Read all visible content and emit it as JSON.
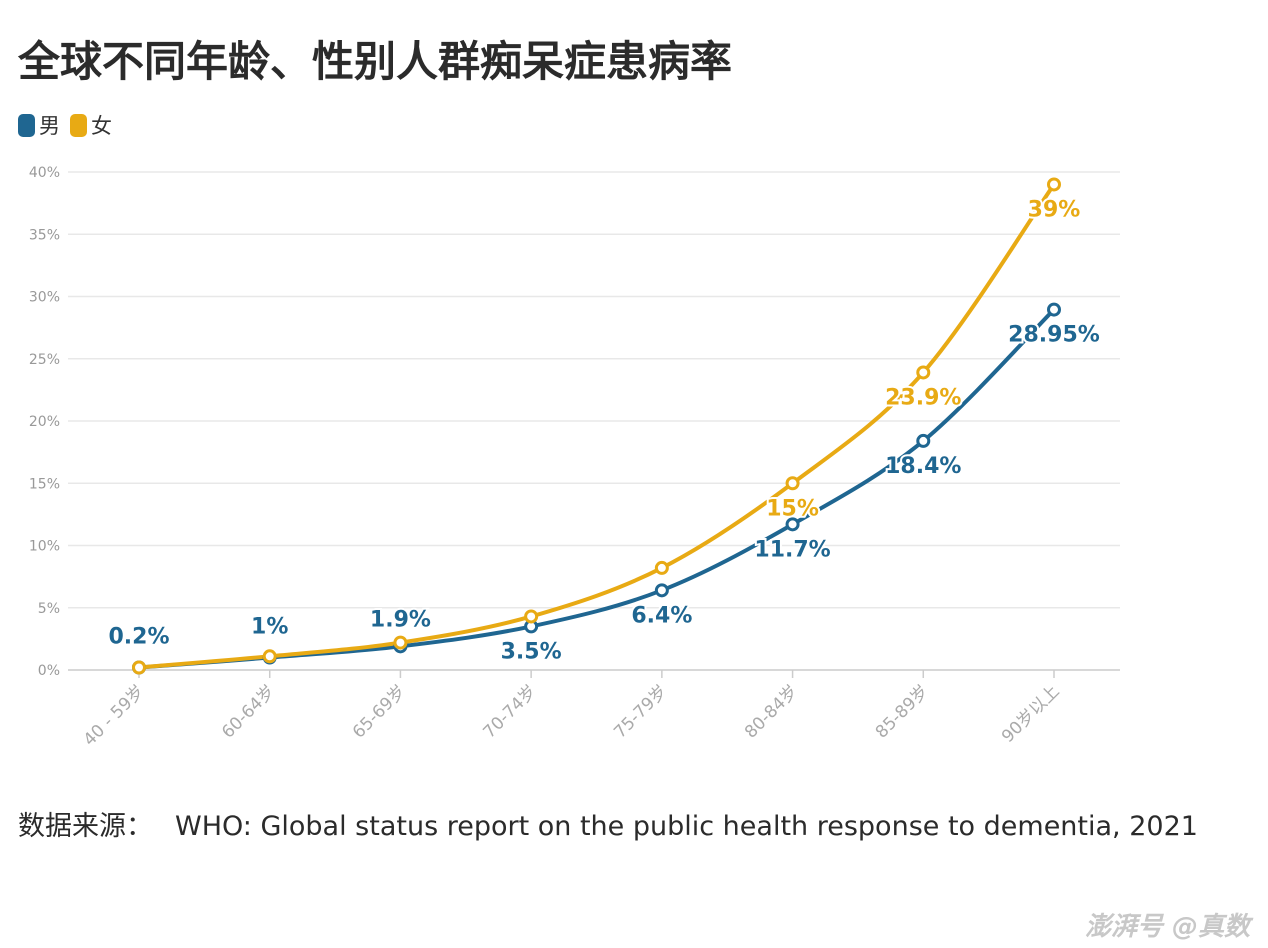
{
  "chart_data": {
    "type": "line",
    "title": "全球不同年龄、性别人群痴呆症患病率",
    "categories": [
      "40 - 59岁",
      "60-64岁",
      "65-69岁",
      "70-74岁",
      "75-79岁",
      "80-84岁",
      "85-89岁",
      "90岁以上"
    ],
    "series": [
      {
        "name": "男",
        "color": "#1f6691",
        "values": [
          0.2,
          1,
          1.9,
          3.5,
          6.4,
          11.7,
          18.4,
          28.95
        ],
        "labels": [
          "0.2%",
          "1%",
          "1.9%",
          "3.5%",
          "6.4%",
          "11.7%",
          "18.4%",
          "28.95%"
        ]
      },
      {
        "name": "女",
        "color": "#e8aa14",
        "values": [
          0.2,
          1.1,
          2.2,
          4.3,
          8.2,
          15,
          23.9,
          39
        ],
        "labels": [
          "",
          "",
          "",
          "",
          "",
          "15%",
          "23.9%",
          "39%"
        ]
      }
    ],
    "yticks": [
      "0%",
      "5%",
      "10%",
      "15%",
      "20%",
      "25%",
      "30%",
      "35%",
      "40%"
    ],
    "ylim": [
      0,
      40
    ],
    "grid": true,
    "legend_position": "top-left",
    "xlabel": "",
    "ylabel": ""
  },
  "source": {
    "label": "数据来源：",
    "text": "WHO: Global status report on the public health response to dementia, 2021"
  },
  "watermark": {
    "text": "澎湃号 @真数"
  }
}
